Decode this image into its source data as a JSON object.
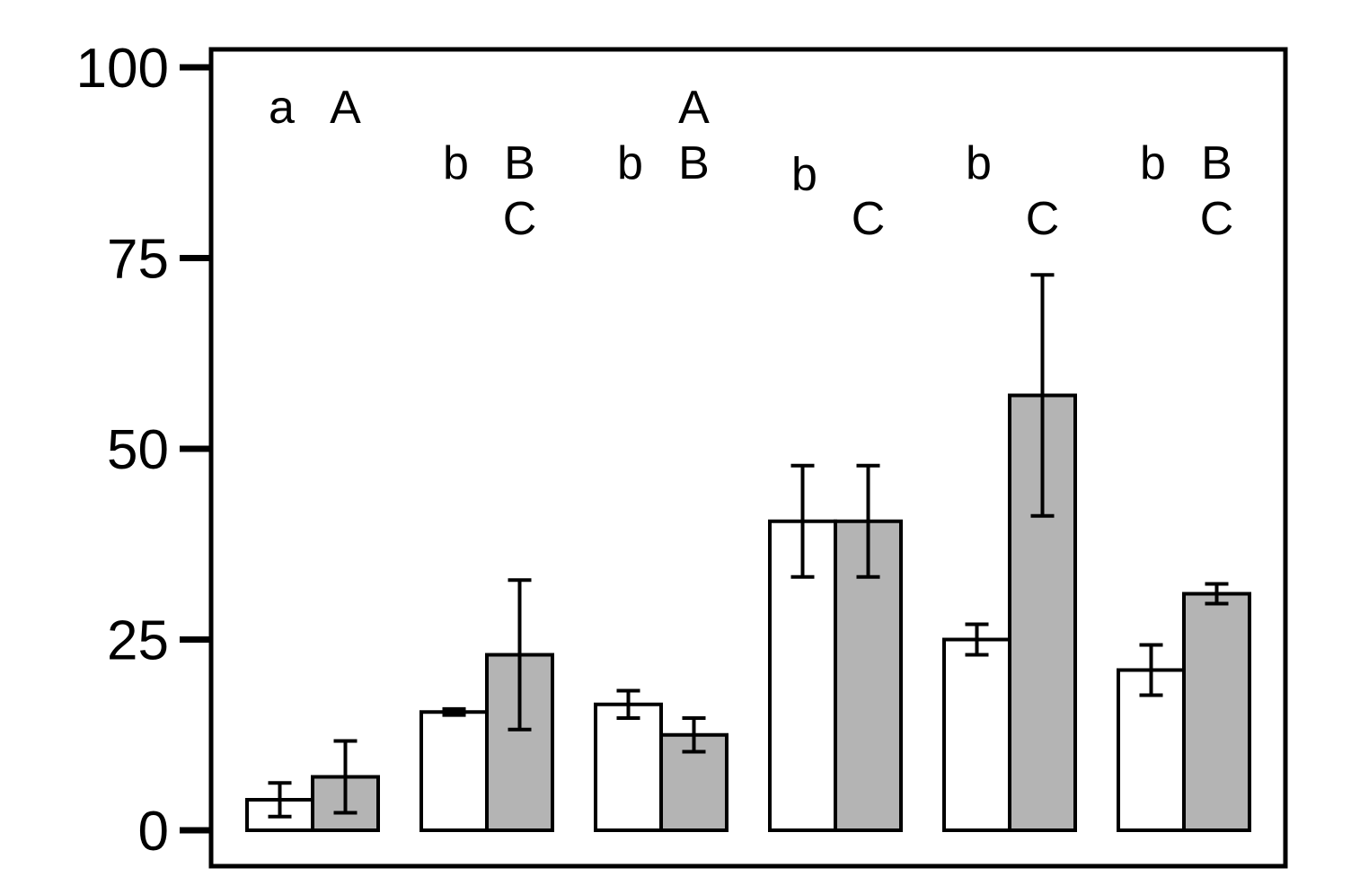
{
  "chart_data": {
    "type": "bar",
    "title": "",
    "xlabel": "",
    "ylabel": "",
    "ylim": [
      0,
      100
    ],
    "yticks": [
      0,
      25,
      50,
      75,
      100
    ],
    "grid": false,
    "legend": "none",
    "group_count": 6,
    "series": [
      {
        "fill": "#ffffff",
        "values": [
          4,
          15.5,
          16.5,
          40.5,
          25,
          21
        ],
        "errors": [
          2.2,
          0.4,
          1.8,
          7.3,
          2,
          3.3
        ]
      },
      {
        "fill": "#b4b4b4",
        "values": [
          7,
          23,
          12.5,
          40.5,
          57,
          31
        ],
        "errors": [
          4.7,
          9.8,
          2.2,
          7.3,
          15.8,
          1.3
        ]
      }
    ],
    "significance_letters": [
      {
        "group": 0,
        "series": 0,
        "lines": [
          "a"
        ]
      },
      {
        "group": 0,
        "series": 1,
        "lines": [
          "A"
        ]
      },
      {
        "group": 1,
        "series": 0,
        "lines": [
          "b"
        ]
      },
      {
        "group": 1,
        "series": 1,
        "lines": [
          "B",
          "C"
        ]
      },
      {
        "group": 2,
        "series": 0,
        "lines": [
          "b"
        ]
      },
      {
        "group": 2,
        "series": 1,
        "lines": [
          "A",
          "B"
        ]
      },
      {
        "group": 3,
        "series": 0,
        "lines": [
          "b"
        ]
      },
      {
        "group": 3,
        "series": 1,
        "lines": [
          "C"
        ]
      },
      {
        "group": 4,
        "series": 0,
        "lines": [
          "b"
        ]
      },
      {
        "group": 4,
        "series": 1,
        "lines": [
          "C"
        ]
      },
      {
        "group": 5,
        "series": 0,
        "lines": [
          "b"
        ]
      },
      {
        "group": 5,
        "series": 1,
        "lines": [
          "B",
          "C"
        ]
      }
    ]
  }
}
